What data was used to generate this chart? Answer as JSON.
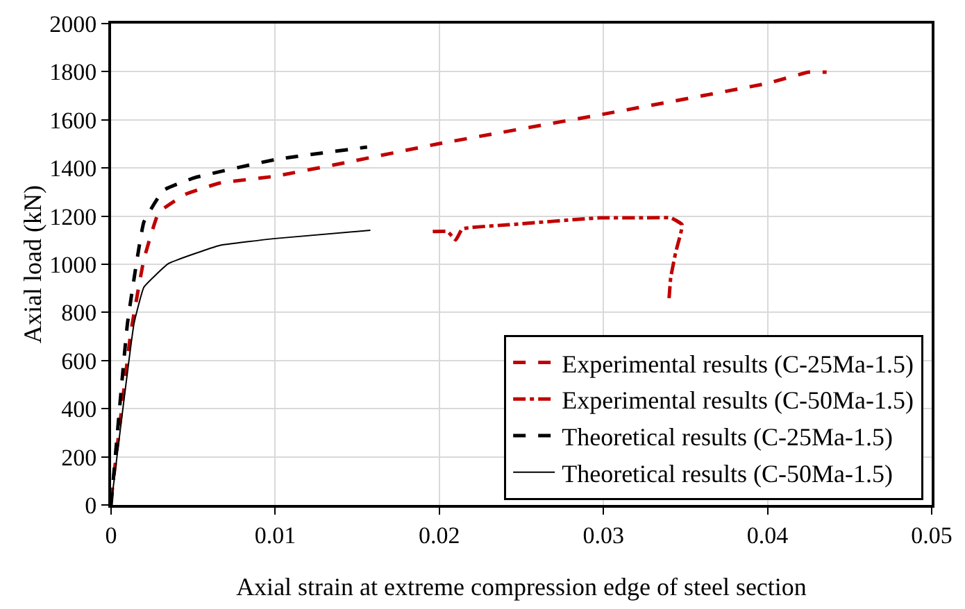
{
  "chart_data": {
    "type": "line",
    "xlabel": "Axial strain at extreme compression edge of steel section",
    "ylabel": "Axial load (kN)",
    "xlim": [
      0,
      0.05
    ],
    "xticks": [
      0,
      0.01,
      0.02,
      0.03,
      0.04,
      0.05
    ],
    "ylim": [
      0,
      2000
    ],
    "yticks": [
      0,
      200,
      400,
      600,
      800,
      1000,
      1200,
      1400,
      1600,
      1800,
      2000
    ],
    "grid": true,
    "legend": "bottom right",
    "series": [
      {
        "name": "Experimental results (C-25Ma-1.5)",
        "color": "#c00000",
        "line_style": "dashed",
        "x": [
          0,
          0.0012,
          0.002,
          0.0029,
          0.0045,
          0.0066,
          0.01,
          0.0144,
          0.0199,
          0.0301,
          0.04,
          0.0425,
          0.0436
        ],
        "values": [
          20,
          715,
          1020,
          1215,
          1290,
          1337,
          1366,
          1424,
          1500,
          1625,
          1752,
          1798,
          1798
        ]
      },
      {
        "name": "Experimental results (C-50Ma-1.5)",
        "color": "#c00000",
        "line_style": "dashdot",
        "x": [
          0.0196,
          0.0205,
          0.021,
          0.0214,
          0.0242,
          0.0298,
          0.0326,
          0.0341,
          0.0348,
          0.0344,
          0.0341,
          0.034
        ],
        "values": [
          1136,
          1136,
          1101,
          1147,
          1164,
          1193,
          1193,
          1193,
          1164,
          1049,
          945,
          859
        ]
      },
      {
        "name": "Theoretical results (C-25Ma-1.5)",
        "color": "#000000",
        "line_style": "dashed",
        "x": [
          0,
          0.001,
          0.002,
          0.0032,
          0.0051,
          0.01,
          0.0156
        ],
        "values": [
          0,
          755,
          1176,
          1308,
          1360,
          1435,
          1487
        ]
      },
      {
        "name": "Theoretical results (C-50Ma-1.5)",
        "color": "#000000",
        "line_style": "solid",
        "x": [
          0,
          0.0014,
          0.002,
          0.0035,
          0.0066,
          0.01,
          0.0158
        ],
        "values": [
          0,
          755,
          905,
          1003,
          1078,
          1107,
          1141
        ]
      }
    ]
  }
}
